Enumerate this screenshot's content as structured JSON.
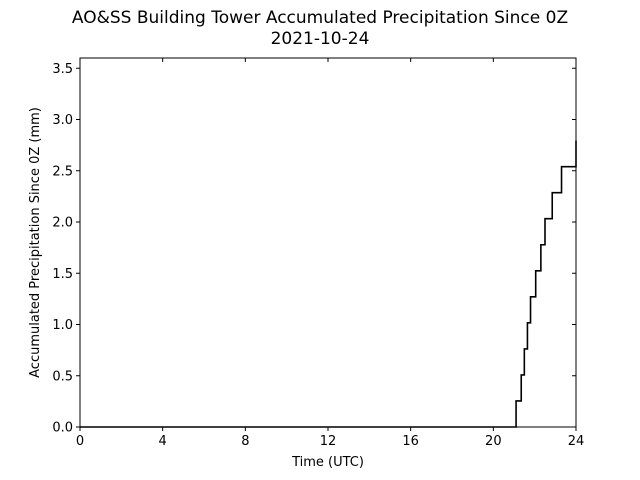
{
  "chart_data": {
    "type": "line",
    "title": "AO&SS Building Tower Accumulated Precipitation Since 0Z",
    "subtitle": "2021-10-24",
    "xlabel": "Time (UTC)",
    "ylabel": "Accumulated Precipitation Since 0Z (mm)",
    "xlim": [
      0,
      24
    ],
    "ylim": [
      0,
      3.6
    ],
    "x_ticks": [
      0,
      4,
      8,
      12,
      16,
      20,
      24
    ],
    "x_tick_labels": [
      "0",
      "4",
      "8",
      "12",
      "16",
      "20",
      "24"
    ],
    "y_ticks": [
      0,
      0.5,
      1.0,
      1.5,
      2.0,
      2.5,
      3.0,
      3.5
    ],
    "y_tick_labels": [
      "0.0",
      "0.5",
      "1.0",
      "1.5",
      "2.0",
      "2.5",
      "3.0",
      "3.5"
    ],
    "grid": false,
    "step": true,
    "line_color": "#000000",
    "series": [
      {
        "x": [
          0,
          21.1,
          21.35,
          21.5,
          21.65,
          21.8,
          22.05,
          22.3,
          22.5,
          22.85,
          23.3,
          24
        ],
        "y": [
          0,
          0.254,
          0.508,
          0.762,
          1.016,
          1.27,
          1.524,
          1.778,
          2.032,
          2.286,
          2.54,
          2.794
        ]
      }
    ]
  }
}
